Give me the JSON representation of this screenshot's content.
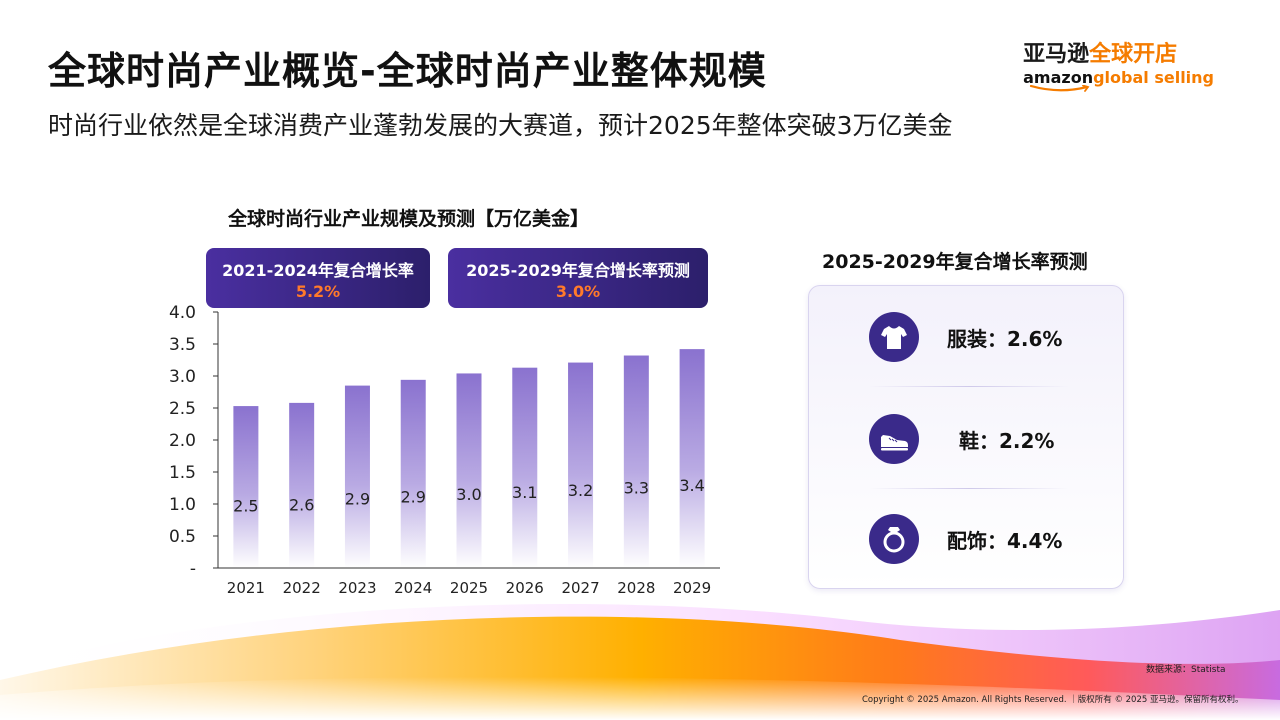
{
  "header": {
    "title": "全球时尚产业概览-全球时尚产业整体规模",
    "subtitle": "时尚行业依然是全球消费产业蓬勃发展的大赛道，预计2025年整体突破3万亿美金"
  },
  "logo": {
    "cn_black": "亚马逊",
    "cn_orange": "全球开店",
    "en_black": "amazon",
    "en_orange": "global selling"
  },
  "cagr_boxes": [
    {
      "label": "2021-2024年复合增长率",
      "value": "5.2%"
    },
    {
      "label": "2025-2029年复合增长率预测",
      "value": "3.0%"
    }
  ],
  "chart_data": {
    "type": "bar",
    "title": "全球时尚行业产业规模及预测【万亿美金】",
    "categories": [
      "2021",
      "2022",
      "2023",
      "2024",
      "2025",
      "2026",
      "2027",
      "2028",
      "2029"
    ],
    "values": [
      2.53,
      2.58,
      2.85,
      2.94,
      3.04,
      3.13,
      3.21,
      3.32,
      3.42
    ],
    "data_labels": [
      "2.5",
      "2.6",
      "2.9",
      "2.9",
      "3.0",
      "3.1",
      "3.2",
      "3.3",
      "3.4"
    ],
    "ylim": [
      0,
      4.0
    ],
    "yticks": [
      "-",
      "0.5",
      "1.0",
      "1.5",
      "2.0",
      "2.5",
      "3.0",
      "3.5",
      "4.0"
    ],
    "grid": false,
    "colors": {
      "bar_top": "#8a72cf",
      "bar_bottom": "#ffffff"
    }
  },
  "growth_forecast": {
    "title": "2025-2029年复合增长率预测",
    "items": [
      {
        "icon": "tshirt-icon",
        "text": "服装：2.6%"
      },
      {
        "icon": "shoe-icon",
        "text": "鞋：2.2%"
      },
      {
        "icon": "ring-icon",
        "text": "配饰：4.4%"
      }
    ]
  },
  "footer": {
    "source": "数据来源：Statista",
    "copyright": "Copyright © 2025 Amazon. All Rights Reserved. ｜版权所有 © 2025 亚马逊。保留所有权利。"
  },
  "colors": {
    "accent_purple": "#3a2a8a",
    "accent_orange": "#f57c00",
    "cagr_value": "#ff7a2a"
  }
}
